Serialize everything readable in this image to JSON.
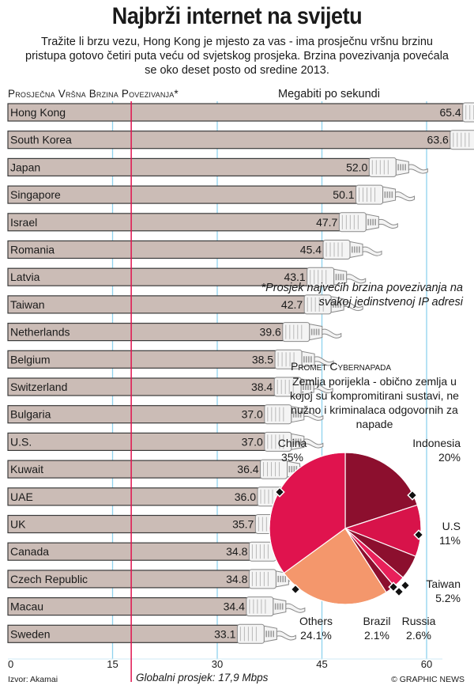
{
  "title": "Najbrži internet na svijetu",
  "subtitle": "Tražite li brzu vezu, Hong Kong je mjesto za vas - ima prosječnu vršnu brzinu pristupa gotovo četiri puta veću od svjetskog prosjeka. Brzina povezivanja povećala se oko deset posto od sredine 2013.",
  "chart_data": [
    {
      "type": "bar",
      "orientation": "horizontal",
      "title": "Prosječna Vršna Brzina Povezivanja*",
      "xlabel": "Megabiti po sekundi",
      "categories": [
        "Hong Kong",
        "South Korea",
        "Japan",
        "Singapore",
        "Israel",
        "Romania",
        "Latvia",
        "Taiwan",
        "Netherlands",
        "Belgium",
        "Switzerland",
        "Bulgaria",
        "U.S.",
        "Kuwait",
        "UAE",
        "UK",
        "Canada",
        "Czech Republic",
        "Macau",
        "Sweden"
      ],
      "values": [
        65.4,
        63.6,
        52.0,
        50.1,
        47.7,
        45.4,
        43.1,
        42.7,
        39.6,
        38.5,
        38.4,
        37.0,
        37.0,
        36.4,
        36.0,
        35.7,
        34.8,
        34.8,
        34.4,
        33.1
      ],
      "value_labels": [
        "65.4",
        "63.6",
        "52.0",
        "50.1",
        "47.7",
        "45.4",
        "43.1",
        "42.7",
        "39.6",
        "38.5",
        "38.4",
        "37.0",
        "37.0",
        "36.4",
        "36.0",
        "35.7",
        "34.8",
        "34.8",
        "34.4",
        "33.1"
      ],
      "xlim": [
        0,
        65.4
      ],
      "ticks": [
        0,
        15,
        30,
        45,
        60
      ],
      "tick_labels": [
        "0",
        "15",
        "30",
        "45",
        "60"
      ],
      "reference_line": {
        "value": 17.9,
        "label": "Globalni prosjek: 17,9 Mbps"
      },
      "grid": true
    },
    {
      "type": "pie",
      "title": "Promet Cybernapada",
      "subtitle": "Zemlja porijekla - obično zemlja u kojoj su kompromitirani sustavi, ne nužno i kriminalaca odgovornih za napade",
      "slices": [
        {
          "label": "Indonesia",
          "value": 20,
          "display": "20%",
          "color": "#8c0f2e"
        },
        {
          "label": "U.S",
          "value": 11,
          "display": "11%",
          "color": "#d8134a"
        },
        {
          "label": "Taiwan",
          "value": 5.2,
          "display": "5.2%",
          "color": "#8c0f2e"
        },
        {
          "label": "Russia",
          "value": 2.6,
          "display": "2.6%",
          "color": "#e8205a"
        },
        {
          "label": "Brazil",
          "value": 2.1,
          "display": "2.1%",
          "color": "#8c0f2e"
        },
        {
          "label": "Others",
          "value": 24.1,
          "display": "24.1%",
          "color": "#f4976c"
        },
        {
          "label": "China",
          "value": 35,
          "display": "35%",
          "color": "#e0134e"
        }
      ]
    }
  ],
  "footnote": "*Prosjek najvećih brzina povezivanja na svakoj jedinstvenoj IP adresi",
  "source": "Izvor: Akamai",
  "credit": "© GRAPHIC NEWS",
  "colors": {
    "bar_fill": "#cbbcb6",
    "bar_stroke": "#3a3a3a",
    "grid_line": "#8fd3ee",
    "reference_line": "#e0134e",
    "cable_fill": "#f4f4f4",
    "cable_stroke": "#8a8a8a"
  }
}
